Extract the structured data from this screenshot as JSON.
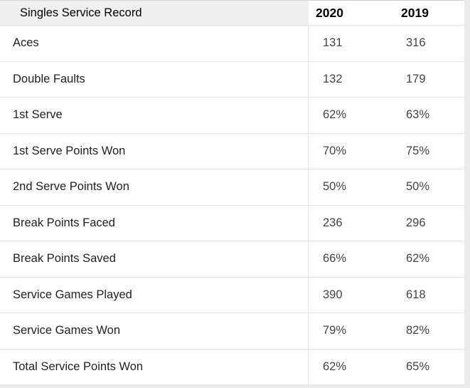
{
  "table": {
    "title": "Singles Service Record",
    "columns": [
      "2020",
      "2019"
    ],
    "rows": [
      {
        "label": "Aces",
        "values": [
          "131",
          "316"
        ]
      },
      {
        "label": "Double Faults",
        "values": [
          "132",
          "179"
        ]
      },
      {
        "label": "1st Serve",
        "values": [
          "62%",
          "63%"
        ]
      },
      {
        "label": "1st Serve Points Won",
        "values": [
          "70%",
          "75%"
        ]
      },
      {
        "label": "2nd Serve Points Won",
        "values": [
          "50%",
          "50%"
        ]
      },
      {
        "label": "Break Points Faced",
        "values": [
          "236",
          "296"
        ]
      },
      {
        "label": "Break Points Saved",
        "values": [
          "66%",
          "62%"
        ]
      },
      {
        "label": "Service Games Played",
        "values": [
          "390",
          "618"
        ]
      },
      {
        "label": "Service Games Won",
        "values": [
          "79%",
          "82%"
        ]
      },
      {
        "label": "Total Service Points Won",
        "values": [
          "62%",
          "65%"
        ]
      }
    ]
  },
  "colors": {
    "page_bg": "#ebebeb",
    "table_bg": "#ffffff",
    "header_bg": "#f0f0f0",
    "row_border": "#e3e3e3",
    "label_text": "#212121",
    "value_text": "#434343",
    "header_text": "#000000"
  },
  "chart_data": {
    "type": "table",
    "title": "Singles Service Record",
    "columns": [
      "2020",
      "2019"
    ],
    "rows": [
      [
        "Aces",
        "131",
        "316"
      ],
      [
        "Double Faults",
        "132",
        "179"
      ],
      [
        "1st Serve",
        "62%",
        "63%"
      ],
      [
        "1st Serve Points Won",
        "70%",
        "75%"
      ],
      [
        "2nd Serve Points Won",
        "50%",
        "50%"
      ],
      [
        "Break Points Faced",
        "236",
        "296"
      ],
      [
        "Break Points Saved",
        "66%",
        "62%"
      ],
      [
        "Service Games Played",
        "390",
        "618"
      ],
      [
        "Service Games Won",
        "79%",
        "82%"
      ],
      [
        "Total Service Points Won",
        "62%",
        "65%"
      ]
    ],
    "layout": "two numeric year columns right of a flexible label column; grid lines on rows and a vertical divider before value columns"
  }
}
